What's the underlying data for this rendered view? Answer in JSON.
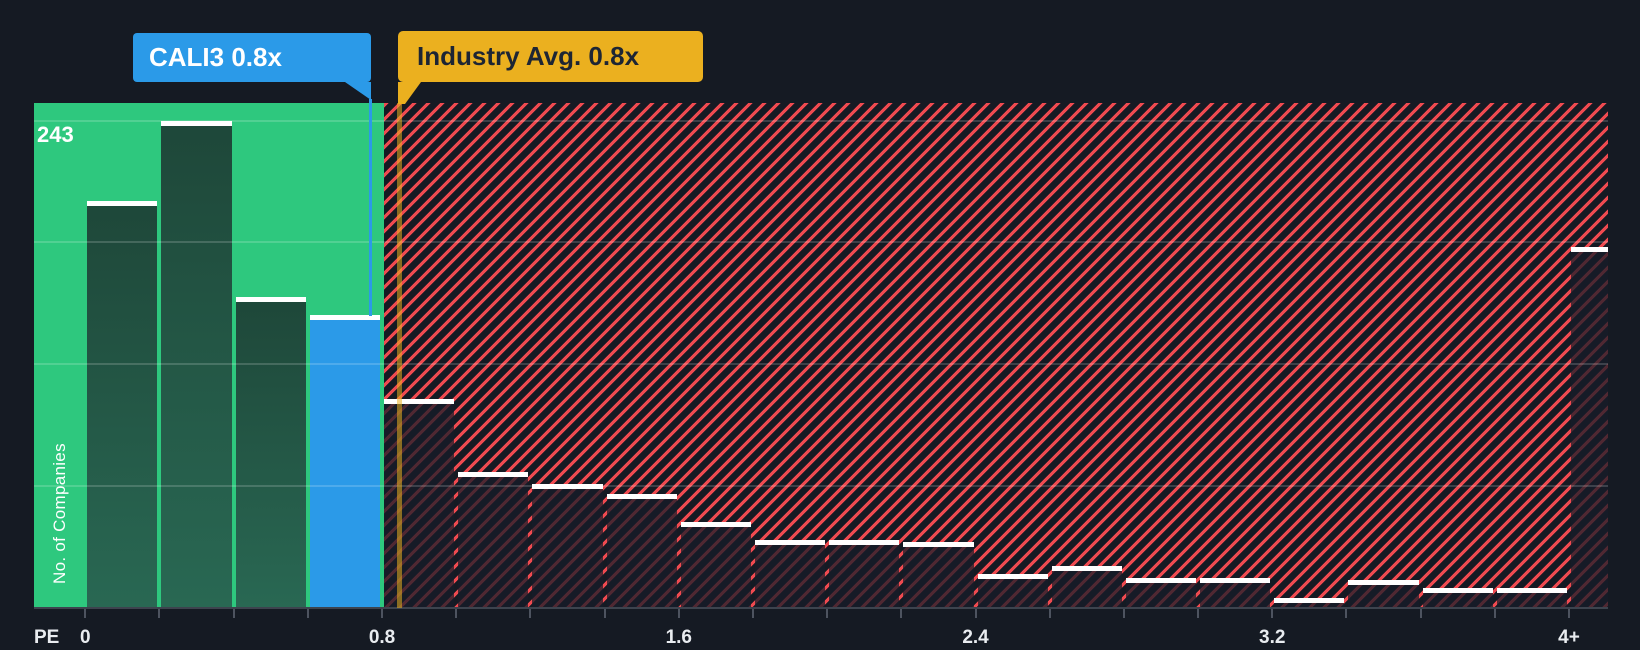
{
  "axis": {
    "x_label": "PE",
    "y_label": "No. of Companies",
    "y_max_label": "243"
  },
  "tooltips": {
    "company": {
      "label": "CALI3 0.8x"
    },
    "industry": {
      "label": "Industry Avg. 0.8x"
    }
  },
  "colors": {
    "background": "#151A23",
    "below_region_green": "#2EC87E",
    "hatch_red": "#EF4A50",
    "bar_green_top": "#1E4739",
    "bar_green_bottom": "#296853",
    "bar_red_overlay": "rgba(23,29,41,0.74)",
    "company_blue": "#2B9AE8",
    "industry_yellow": "#EBB01F",
    "bar_cap_white": "#FFFFFF",
    "gridline": "rgba(255,255,255,0.17)",
    "baseline": "#3D434E",
    "tick": "#4D535F",
    "axis_text": "#E9ECF0",
    "industry_text": "#1D2534"
  },
  "chart_data": {
    "type": "bar",
    "subtype": "histogram",
    "xlabel": "PE",
    "ylabel": "No. of Companies",
    "ymax": 243,
    "ylim": [
      0,
      243
    ],
    "grid": "horizontal-quarter-lines",
    "bin_width": 0.2,
    "x_tick_labels": [
      "0",
      "0.8",
      "1.6",
      "2.4",
      "3.2",
      "4+"
    ],
    "x_tick_values": [
      0,
      0.8,
      1.6,
      2.4,
      3.2,
      4
    ],
    "company_marker": {
      "label": "CALI3 0.8x",
      "value": 0.8
    },
    "industry_marker": {
      "label": "Industry Avg. 0.8x",
      "value": 0.8
    },
    "zones": {
      "below": "green region 0 to 0.8 (at or below industry average)",
      "company": "blue highlighted bar containing CALI3",
      "above": "red hatched region 0.8 to 4+ (above industry average)"
    },
    "bins": [
      {
        "from": 0.0,
        "to": 0.2,
        "count": 203,
        "zone": "below"
      },
      {
        "from": 0.2,
        "to": 0.4,
        "count": 243,
        "zone": "below"
      },
      {
        "from": 0.4,
        "to": 0.6,
        "count": 155,
        "zone": "below"
      },
      {
        "from": 0.6,
        "to": 0.8,
        "count": 146,
        "zone": "company"
      },
      {
        "from": 0.8,
        "to": 1.0,
        "count": 104,
        "zone": "above"
      },
      {
        "from": 1.0,
        "to": 1.2,
        "count": 68,
        "zone": "above"
      },
      {
        "from": 1.2,
        "to": 1.4,
        "count": 62,
        "zone": "above"
      },
      {
        "from": 1.4,
        "to": 1.6,
        "count": 57,
        "zone": "above"
      },
      {
        "from": 1.6,
        "to": 1.8,
        "count": 43,
        "zone": "above"
      },
      {
        "from": 1.8,
        "to": 2.0,
        "count": 34,
        "zone": "above"
      },
      {
        "from": 2.0,
        "to": 2.2,
        "count": 34,
        "zone": "above"
      },
      {
        "from": 2.2,
        "to": 2.4,
        "count": 33,
        "zone": "above"
      },
      {
        "from": 2.4,
        "to": 2.6,
        "count": 17,
        "zone": "above"
      },
      {
        "from": 2.6,
        "to": 2.8,
        "count": 21,
        "zone": "above"
      },
      {
        "from": 2.8,
        "to": 3.0,
        "count": 15,
        "zone": "above"
      },
      {
        "from": 3.0,
        "to": 3.2,
        "count": 15,
        "zone": "above"
      },
      {
        "from": 3.2,
        "to": 3.4,
        "count": 5,
        "zone": "above"
      },
      {
        "from": 3.4,
        "to": 3.6,
        "count": 14,
        "zone": "above"
      },
      {
        "from": 3.6,
        "to": 3.8,
        "count": 10,
        "zone": "above"
      },
      {
        "from": 3.8,
        "to": 4.0,
        "count": 10,
        "zone": "above"
      },
      {
        "from": 4.0,
        "to": 4.2,
        "count": 180,
        "zone": "above",
        "edge_bin": true
      }
    ]
  }
}
